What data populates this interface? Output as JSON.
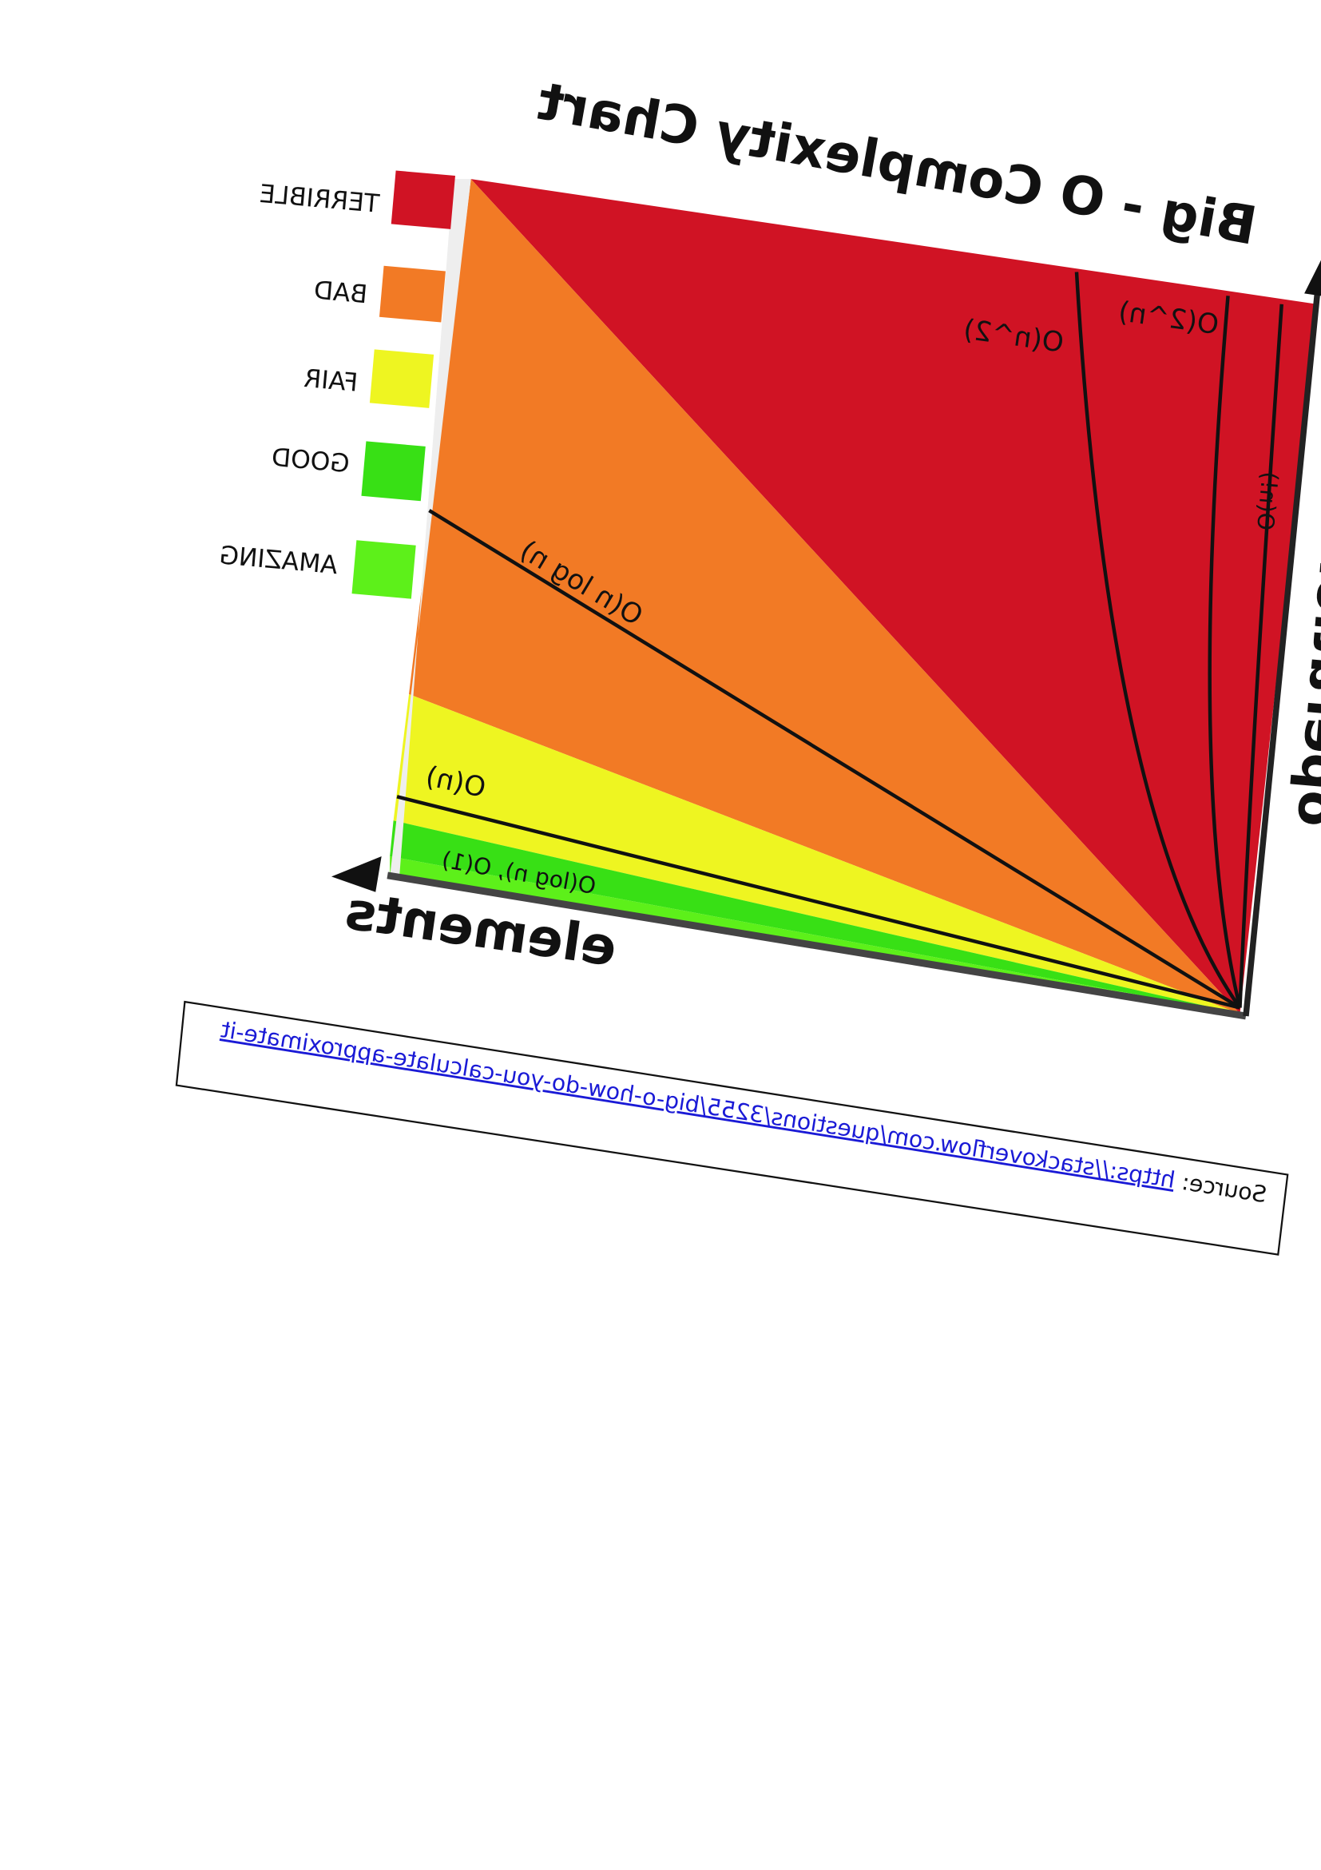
{
  "header": {
    "title": "Big - O Complexity Chart"
  },
  "legend": [
    "TERRIBLE",
    "BAD",
    "FAIR",
    "GOOD",
    "AMAZING"
  ],
  "curves": [
    "O(n^2)",
    "O(2^n)",
    "O(n!)",
    "O(n log n)",
    "O(n)",
    "O(log n), O(1)"
  ],
  "axes": {
    "x": "elements",
    "y": "operations"
  },
  "source": {
    "label": "Source:",
    "url": "https://stackoverflow.com/questions/3255/big-o-how-do-you-calculate-approximate-it"
  }
}
